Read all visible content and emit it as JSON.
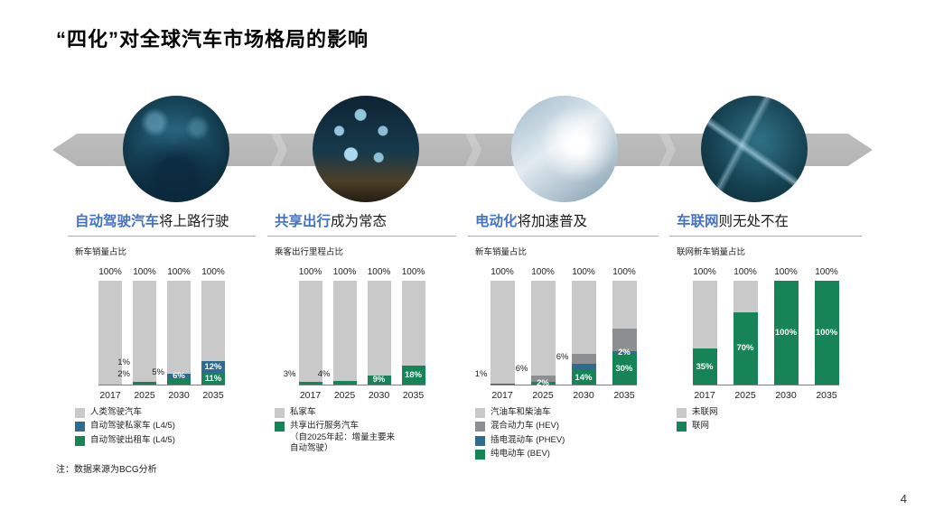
{
  "slide": {
    "title": "“四化”对全球汽车市场格局的影响",
    "note": "注：数据来源为BCG分析",
    "page_number": "4"
  },
  "colors": {
    "heading_blue": "#4472c4",
    "band_gray": "#b4b4b4",
    "bar_gray": "#c9c9c9",
    "bar_darkgray": "#8b8f91",
    "bar_blue": "#2f6b8f",
    "bar_green": "#168457"
  },
  "photos": [
    {
      "name": "photo-autonomous-cockpit"
    },
    {
      "name": "photo-shared-mobility-city"
    },
    {
      "name": "photo-electric-vehicle"
    },
    {
      "name": "photo-connected-highway"
    }
  ],
  "sections": [
    {
      "heading_highlight": "自动驾驶汽车",
      "heading_rest": "将上路行驶"
    },
    {
      "heading_highlight": "共享出行",
      "heading_rest": "成为常态"
    },
    {
      "heading_highlight": "电动化",
      "heading_rest": "将加速普及"
    },
    {
      "heading_highlight": "车联网",
      "heading_rest": "则无处不在"
    }
  ],
  "chart_data": [
    {
      "type": "bar",
      "stacked": true,
      "title": "自动驾驶汽车将上路行驶",
      "ylabel": "新车销量占比",
      "xlabel": "",
      "unit": "%",
      "ylim": [
        0,
        100
      ],
      "bar_total_label": "100%",
      "categories": [
        "2017",
        "2025",
        "2030",
        "2035"
      ],
      "series": [
        {
          "name": "自动驾驶出租车 (L4/5)",
          "color": "green",
          "values": [
            0,
            2,
            5,
            11
          ]
        },
        {
          "name": "自动驾驶私家车 (L4/5)",
          "color": "blue",
          "values": [
            0,
            1,
            6,
            12
          ]
        },
        {
          "name": "人类驾驶汽车",
          "color": "gray",
          "values": [
            100,
            97,
            89,
            77
          ]
        }
      ],
      "value_labels": [
        {
          "series": 0,
          "bar": 1,
          "pos": "out"
        },
        {
          "series": 1,
          "bar": 1,
          "pos": "out"
        },
        {
          "series": 0,
          "bar": 2,
          "pos": "out"
        },
        {
          "series": 1,
          "bar": 2,
          "pos": "in"
        },
        {
          "series": 0,
          "bar": 3,
          "pos": "in"
        },
        {
          "series": 1,
          "bar": 3,
          "pos": "in"
        }
      ]
    },
    {
      "type": "bar",
      "stacked": true,
      "title": "共享出行成为常态",
      "ylabel": "乘客出行里程占比",
      "xlabel": "",
      "unit": "%",
      "ylim": [
        0,
        100
      ],
      "bar_total_label": "100%",
      "categories": [
        "2017",
        "2025",
        "2030",
        "2035"
      ],
      "series": [
        {
          "name": "共享出行服务汽车\n（自2025年起：增量主要来\n自动驾驶）",
          "color": "green",
          "values": [
            3,
            4,
            9,
            18
          ]
        },
        {
          "name": "私家车",
          "color": "gray",
          "values": [
            97,
            96,
            91,
            82
          ]
        }
      ],
      "value_labels": [
        {
          "series": 0,
          "bar": 0,
          "pos": "out"
        },
        {
          "series": 0,
          "bar": 1,
          "pos": "out"
        },
        {
          "series": 0,
          "bar": 2,
          "pos": "in"
        },
        {
          "series": 0,
          "bar": 3,
          "pos": "in"
        }
      ]
    },
    {
      "type": "bar",
      "stacked": true,
      "title": "电动化将加速普及",
      "ylabel": "新车销量占比",
      "xlabel": "",
      "unit": "%",
      "ylim": [
        0,
        100
      ],
      "bar_total_label": "100%",
      "categories": [
        "2017",
        "2025",
        "2030",
        "2035"
      ],
      "series": [
        {
          "name": "纯电动车 (BEV)",
          "color": "green",
          "values": [
            1,
            2,
            14,
            30
          ]
        },
        {
          "name": "插电混动车 (PHEV)",
          "color": "blue",
          "values": [
            0,
            1,
            6,
            2
          ]
        },
        {
          "name": "混合动力车 (HEV)",
          "color": "darkgray",
          "values": [
            0,
            6,
            10,
            22
          ]
        },
        {
          "name": "汽油车和柴油车",
          "color": "gray",
          "values": [
            99,
            91,
            70,
            46
          ]
        }
      ],
      "value_labels": [
        {
          "series": 0,
          "bar": 0,
          "pos": "out"
        },
        {
          "series": 0,
          "bar": 1,
          "pos": "in"
        },
        {
          "series": 2,
          "bar": 1,
          "pos": "out"
        },
        {
          "series": 0,
          "bar": 2,
          "pos": "in"
        },
        {
          "series": 1,
          "bar": 2,
          "pos": "out"
        },
        {
          "series": 0,
          "bar": 3,
          "pos": "in"
        },
        {
          "series": 1,
          "bar": 3,
          "pos": "in"
        }
      ]
    },
    {
      "type": "bar",
      "stacked": true,
      "title": "车联网则无处不在",
      "ylabel": "联网新车销量占比",
      "xlabel": "",
      "unit": "%",
      "ylim": [
        0,
        100
      ],
      "bar_total_label": "100%",
      "categories": [
        "2017",
        "2025",
        "2030",
        "2035"
      ],
      "series": [
        {
          "name": "联网",
          "color": "green",
          "values": [
            35,
            70,
            100,
            100
          ]
        },
        {
          "name": "未联网",
          "color": "gray",
          "values": [
            65,
            30,
            0,
            0
          ]
        }
      ],
      "value_labels": [
        {
          "series": 0,
          "bar": 0,
          "pos": "in"
        },
        {
          "series": 0,
          "bar": 1,
          "pos": "in"
        },
        {
          "series": 0,
          "bar": 2,
          "pos": "in"
        },
        {
          "series": 0,
          "bar": 3,
          "pos": "in"
        }
      ]
    }
  ]
}
